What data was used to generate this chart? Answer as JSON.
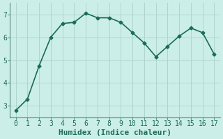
{
  "x": [
    0,
    1,
    2,
    3,
    4,
    5,
    6,
    7,
    8,
    9,
    10,
    11,
    12,
    13,
    14,
    15,
    16,
    17
  ],
  "y": [
    2.8,
    3.3,
    4.75,
    6.0,
    6.6,
    6.65,
    7.05,
    6.85,
    6.85,
    6.65,
    6.2,
    5.75,
    5.15,
    5.6,
    6.05,
    6.4,
    6.2,
    5.25
  ],
  "line_color": "#1a6b5a",
  "marker": "D",
  "marker_size": 2.5,
  "bg_color": "#cceee8",
  "grid_color": "#b0d5ce",
  "xlabel": "Humidex (Indice chaleur)",
  "xlim": [
    -0.5,
    17.5
  ],
  "ylim": [
    2.5,
    7.5
  ],
  "yticks": [
    3,
    4,
    5,
    6,
    7
  ],
  "xticks": [
    0,
    1,
    2,
    3,
    4,
    5,
    6,
    7,
    8,
    9,
    10,
    11,
    12,
    13,
    14,
    15,
    16,
    17
  ],
  "xlabel_fontsize": 8,
  "tick_fontsize": 7,
  "line_width": 1.2,
  "spine_color": "#5a8a80"
}
